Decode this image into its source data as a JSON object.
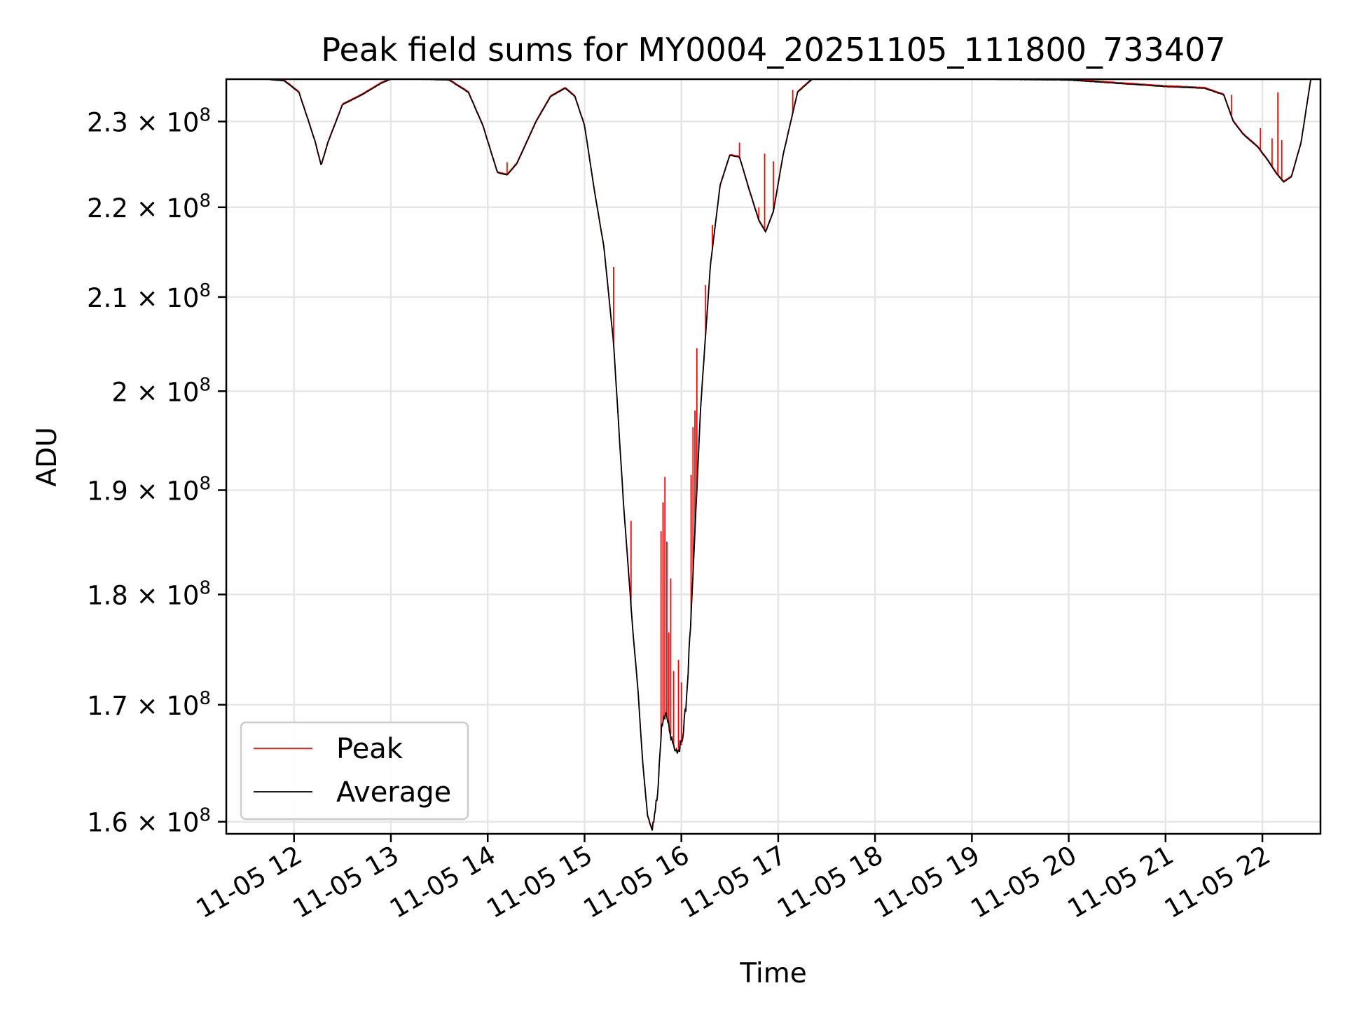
{
  "chart_data": {
    "type": "line",
    "title": "Peak field sums for MY0004_20251105_111800_733407",
    "xlabel": "Time",
    "ylabel": "ADU",
    "yscale": "log",
    "xlim": [
      11.3,
      22.6
    ],
    "ylim": [
      159000000,
      235100000
    ],
    "grid": true,
    "legend_position": "lower-left",
    "x_ticks": [
      {
        "value": 12,
        "label": "11-05 12"
      },
      {
        "value": 13,
        "label": "11-05 13"
      },
      {
        "value": 14,
        "label": "11-05 14"
      },
      {
        "value": 15,
        "label": "11-05 15"
      },
      {
        "value": 16,
        "label": "11-05 16"
      },
      {
        "value": 17,
        "label": "11-05 17"
      },
      {
        "value": 18,
        "label": "11-05 18"
      },
      {
        "value": 19,
        "label": "11-05 19"
      },
      {
        "value": 20,
        "label": "11-05 20"
      },
      {
        "value": 21,
        "label": "11-05 21"
      },
      {
        "value": 22,
        "label": "11-05 22"
      }
    ],
    "y_ticks": [
      {
        "value": 160000000,
        "mantissa": "1.6",
        "exponent": "8"
      },
      {
        "value": 170000000,
        "mantissa": "1.7",
        "exponent": "8"
      },
      {
        "value": 180000000,
        "mantissa": "1.8",
        "exponent": "8"
      },
      {
        "value": 190000000,
        "mantissa": "1.9",
        "exponent": "8"
      },
      {
        "value": 200000000,
        "mantissa": "2",
        "exponent": "8"
      },
      {
        "value": 210000000,
        "mantissa": "2.1",
        "exponent": "8"
      },
      {
        "value": 220000000,
        "mantissa": "2.2",
        "exponent": "8"
      },
      {
        "value": 230000000,
        "mantissa": "2.3",
        "exponent": "8"
      }
    ],
    "tick_times_symbol": "×",
    "tick_base": "10",
    "series": [
      {
        "name": "Average",
        "color": "#000000",
        "x": [
          11.3,
          11.7,
          11.9,
          12.05,
          12.15,
          12.22,
          12.28,
          12.35,
          12.5,
          12.7,
          12.9,
          13.0,
          13.3,
          13.6,
          13.8,
          13.95,
          14.1,
          14.2,
          14.3,
          14.5,
          14.65,
          14.8,
          14.9,
          15.0,
          15.1,
          15.2,
          15.3,
          15.4,
          15.5,
          15.55,
          15.6,
          15.65,
          15.7,
          15.75,
          15.8,
          15.85,
          15.9,
          15.95,
          16.0,
          16.05,
          16.1,
          16.15,
          16.2,
          16.3,
          16.4,
          16.5,
          16.6,
          16.7,
          16.8,
          16.87,
          16.95,
          17.05,
          17.2,
          17.35,
          17.6,
          18.0,
          19.0,
          20.0,
          20.5,
          21.0,
          21.4,
          21.6,
          21.7,
          21.8,
          21.95,
          22.05,
          22.15,
          22.22,
          22.3,
          22.4,
          22.5,
          22.6
        ],
        "y": [
          235100000,
          235100000,
          234900000,
          233500000,
          230000000,
          227500000,
          224800000,
          227500000,
          232000000,
          233200000,
          234600000,
          235100000,
          235100000,
          235000000,
          233500000,
          229500000,
          224000000,
          223700000,
          225000000,
          230000000,
          233000000,
          234000000,
          233000000,
          229500000,
          222000000,
          215500000,
          205000000,
          189000000,
          176500000,
          171500000,
          165000000,
          160500000,
          159200000,
          162000000,
          168500000,
          169000000,
          167000000,
          166000000,
          166500000,
          170000000,
          178000000,
          188000000,
          198500000,
          213500000,
          222500000,
          226000000,
          225800000,
          222000000,
          218500000,
          217200000,
          219500000,
          226000000,
          233500000,
          235100000,
          235100000,
          235100000,
          235100000,
          235000000,
          234600000,
          234200000,
          234000000,
          233200000,
          230000000,
          228500000,
          227000000,
          225500000,
          223800000,
          222900000,
          223500000,
          227500000,
          235100000,
          235100000
        ]
      },
      {
        "name": "Peak",
        "color": "#ff0000",
        "spikes": [
          {
            "x": 14.2,
            "y": 225200000
          },
          {
            "x": 15.3,
            "y": 213300000
          },
          {
            "x": 15.48,
            "y": 187000000
          },
          {
            "x": 15.62,
            "y": 163000000
          },
          {
            "x": 15.79,
            "y": 186000000
          },
          {
            "x": 15.81,
            "y": 188800000
          },
          {
            "x": 15.83,
            "y": 191300000
          },
          {
            "x": 15.85,
            "y": 185000000
          },
          {
            "x": 15.87,
            "y": 176500000
          },
          {
            "x": 15.89,
            "y": 181500000
          },
          {
            "x": 15.92,
            "y": 173000000
          },
          {
            "x": 15.97,
            "y": 174000000
          },
          {
            "x": 16.0,
            "y": 172000000
          },
          {
            "x": 16.1,
            "y": 191500000
          },
          {
            "x": 16.12,
            "y": 196300000
          },
          {
            "x": 16.14,
            "y": 198000000
          },
          {
            "x": 16.16,
            "y": 204500000
          },
          {
            "x": 16.25,
            "y": 211300000
          },
          {
            "x": 16.32,
            "y": 218000000
          },
          {
            "x": 16.4,
            "y": 222500000
          },
          {
            "x": 16.5,
            "y": 226000000
          },
          {
            "x": 16.6,
            "y": 227500000
          },
          {
            "x": 16.8,
            "y": 220000000
          },
          {
            "x": 16.86,
            "y": 226200000
          },
          {
            "x": 16.95,
            "y": 225300000
          },
          {
            "x": 17.15,
            "y": 233800000
          },
          {
            "x": 21.68,
            "y": 233200000
          },
          {
            "x": 21.98,
            "y": 229200000
          },
          {
            "x": 22.1,
            "y": 228000000
          },
          {
            "x": 22.16,
            "y": 233500000
          },
          {
            "x": 22.2,
            "y": 227800000
          }
        ]
      }
    ]
  }
}
